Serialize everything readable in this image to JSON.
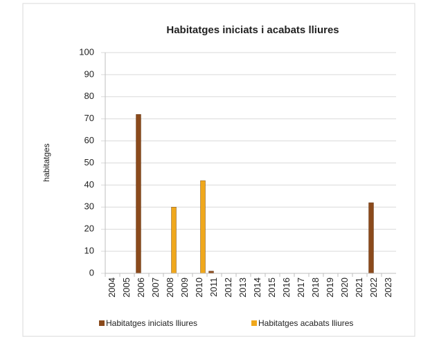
{
  "chart_data": {
    "type": "bar",
    "title": "Habitatges iniciats i acabats lliures",
    "ylabel": "habitatges",
    "categories": [
      "2004",
      "2005",
      "2006",
      "2007",
      "2008",
      "2009",
      "2010",
      "2011",
      "2012",
      "2013",
      "2014",
      "2015",
      "2016",
      "2017",
      "2018",
      "2019",
      "2020",
      "2021",
      "2022",
      "2023"
    ],
    "series": [
      {
        "name": "Habitatges iniciats lliures",
        "color": "#8b4a1c",
        "values": [
          0,
          0,
          72,
          0,
          0,
          0,
          0,
          1,
          0,
          0,
          0,
          0,
          0,
          0,
          0,
          0,
          0,
          0,
          32,
          0
        ]
      },
      {
        "name": "Habitatges acabats lliures",
        "color": "#f0a81c",
        "values": [
          0,
          0,
          0,
          0,
          30,
          0,
          42,
          0,
          0,
          0,
          0,
          0,
          0,
          0,
          0,
          0,
          0,
          0,
          0,
          0
        ]
      }
    ],
    "ylim": [
      0,
      100
    ],
    "yticks": [
      0,
      10,
      20,
      30,
      40,
      50,
      60,
      70,
      80,
      90,
      100
    ],
    "grid": true,
    "legend": "bottom"
  }
}
